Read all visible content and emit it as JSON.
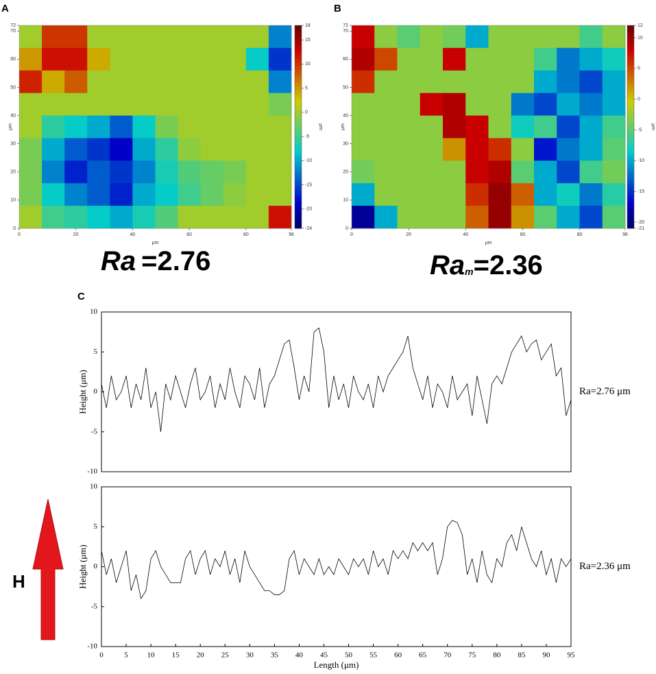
{
  "chart_data": [
    {
      "type": "heatmap",
      "panel_label": "A",
      "xlabel": "μm",
      "ylabel": "μm",
      "colorbar_label": "μm",
      "xlim": [
        0,
        96
      ],
      "ylim": [
        0,
        72
      ],
      "xticks": [
        0,
        20,
        40,
        60,
        80,
        96
      ],
      "yticks": [
        0,
        10,
        20,
        30,
        40,
        50,
        60,
        70,
        72
      ],
      "zlim": [
        -24,
        18
      ],
      "colorbar_ticks": [
        -24,
        -20,
        -15,
        -10,
        -5,
        0,
        5,
        10,
        15,
        18
      ],
      "colormap": "jet",
      "z": [
        [
          0,
          10,
          10,
          0,
          0,
          0,
          0,
          0,
          0,
          0,
          0,
          -12
        ],
        [
          5,
          12,
          12,
          4,
          0,
          0,
          0,
          0,
          0,
          0,
          -8,
          -16
        ],
        [
          11,
          4,
          8,
          0,
          0,
          0,
          0,
          0,
          0,
          0,
          0,
          -12
        ],
        [
          0,
          0,
          0,
          0,
          0,
          0,
          0,
          0,
          0,
          0,
          0,
          -2
        ],
        [
          0,
          -6,
          -8,
          -10,
          -14,
          -8,
          -2,
          0,
          0,
          0,
          0,
          0
        ],
        [
          -2,
          -10,
          -14,
          -16,
          -19,
          -10,
          -6,
          -1,
          0,
          0,
          0,
          0
        ],
        [
          -2,
          -12,
          -17,
          -14,
          -16,
          -12,
          -7,
          -4,
          -3,
          -2,
          0,
          0
        ],
        [
          -2,
          -8,
          -12,
          -14,
          -17,
          -10,
          -8,
          -5,
          -3,
          -1,
          0,
          0
        ],
        [
          0,
          -5,
          -6,
          -8,
          -10,
          -7,
          -4,
          0,
          0,
          0,
          0,
          12
        ]
      ],
      "annotation": {
        "main": "Ra",
        "rest": "=2.76"
      }
    },
    {
      "type": "heatmap",
      "panel_label": "B",
      "xlabel": "μm",
      "ylabel": "μm",
      "colorbar_label": "μm",
      "xlim": [
        0,
        96
      ],
      "ylim": [
        0,
        72
      ],
      "xticks": [
        0,
        20,
        40,
        60,
        80,
        96
      ],
      "yticks": [
        0,
        10,
        20,
        30,
        40,
        50,
        60,
        70,
        72
      ],
      "zlim": [
        -21,
        12
      ],
      "colorbar_ticks": [
        -21,
        -20,
        -15,
        -10,
        -5,
        0,
        5,
        10,
        12
      ],
      "colormap": "jet",
      "z": [
        [
          8,
          -3,
          -5,
          -3,
          -4,
          -10,
          -3,
          -3,
          -3,
          -3,
          -6,
          -3
        ],
        [
          9,
          5,
          -3,
          -3,
          8,
          -3,
          -3,
          -3,
          -6,
          -12,
          -10,
          -8
        ],
        [
          6,
          -3,
          -3,
          -3,
          -3,
          -3,
          -3,
          -3,
          -10,
          -12,
          -14,
          -10
        ],
        [
          -3,
          -3,
          -3,
          8,
          9,
          -3,
          -3,
          -12,
          -14,
          -10,
          -12,
          -10
        ],
        [
          -3,
          -3,
          -3,
          -3,
          9,
          8,
          -3,
          -8,
          -6,
          -14,
          -10,
          -6
        ],
        [
          -3,
          -3,
          -3,
          -3,
          2,
          8,
          6,
          -3,
          -16,
          -12,
          -10,
          -5
        ],
        [
          -4,
          -3,
          -3,
          -3,
          -3,
          8,
          9,
          -5,
          -10,
          -14,
          -6,
          -4
        ],
        [
          -10,
          -3,
          -3,
          -3,
          -3,
          6,
          10,
          4,
          -10,
          -8,
          -12,
          -7
        ],
        [
          -19,
          -10,
          -3,
          -3,
          -3,
          4,
          10,
          2,
          -5,
          -10,
          -14,
          -5
        ]
      ],
      "annotation": {
        "main": "Ra",
        "sub": "m",
        "rest": "=2.36"
      }
    },
    {
      "type": "line",
      "panel_label": "C",
      "ylabel": "Height (μm)",
      "annotation": "Ra=2.76 μm",
      "color": "#000000",
      "xlim": [
        0,
        95
      ],
      "ylim": [
        -10,
        10
      ],
      "yticks": [
        -10,
        -5,
        0,
        5,
        10
      ],
      "x": [
        0,
        1,
        2,
        3,
        4,
        5,
        6,
        7,
        8,
        9,
        10,
        11,
        12,
        13,
        14,
        15,
        16,
        17,
        18,
        19,
        20,
        21,
        22,
        23,
        24,
        25,
        26,
        27,
        28,
        29,
        30,
        31,
        32,
        33,
        34,
        35,
        36,
        37,
        38,
        39,
        40,
        41,
        42,
        43,
        44,
        45,
        46,
        47,
        48,
        49,
        50,
        51,
        52,
        53,
        54,
        55,
        56,
        57,
        58,
        59,
        60,
        61,
        62,
        63,
        64,
        65,
        66,
        67,
        68,
        69,
        70,
        71,
        72,
        73,
        74,
        75,
        76,
        77,
        78,
        79,
        80,
        81,
        82,
        83,
        84,
        85,
        86,
        87,
        88,
        89,
        90,
        91,
        92,
        93,
        94,
        95
      ],
      "values": [
        1,
        -2,
        2,
        -1,
        0,
        2,
        -2,
        1,
        -1,
        3,
        -2,
        0,
        -5,
        1,
        -1,
        2,
        0,
        -2,
        1,
        3,
        -1,
        0,
        2,
        -2,
        1,
        -1,
        3,
        0,
        -2,
        2,
        1,
        -1,
        3,
        -2,
        1,
        2,
        4,
        6,
        6.5,
        3,
        -1,
        2,
        0,
        7.5,
        8,
        5,
        -2,
        2,
        -1,
        1,
        -2,
        2,
        0,
        -1,
        1,
        -2,
        2,
        0,
        2,
        3,
        4,
        5,
        7,
        3,
        1,
        -1,
        2,
        -2,
        1,
        0,
        -2,
        2,
        -1,
        0,
        1,
        -3,
        2,
        -1,
        -4,
        1,
        2,
        1,
        3,
        5,
        6,
        7,
        5,
        6,
        6.5,
        4,
        5,
        6,
        2,
        3,
        -3,
        -1
      ]
    },
    {
      "type": "line",
      "ylabel": "Height (μm)",
      "xlabel": "Length (μm)",
      "annotation": "Ra=2.36 μm",
      "color": "#000000",
      "xlim": [
        0,
        95
      ],
      "ylim": [
        -10,
        10
      ],
      "yticks": [
        -10,
        -5,
        0,
        5,
        10
      ],
      "xticks": [
        0,
        5,
        10,
        15,
        20,
        25,
        30,
        35,
        40,
        45,
        50,
        55,
        60,
        65,
        70,
        75,
        80,
        85,
        90,
        95
      ],
      "x": [
        0,
        1,
        2,
        3,
        4,
        5,
        6,
        7,
        8,
        9,
        10,
        11,
        12,
        13,
        14,
        15,
        16,
        17,
        18,
        19,
        20,
        21,
        22,
        23,
        24,
        25,
        26,
        27,
        28,
        29,
        30,
        31,
        32,
        33,
        34,
        35,
        36,
        37,
        38,
        39,
        40,
        41,
        42,
        43,
        44,
        45,
        46,
        47,
        48,
        49,
        50,
        51,
        52,
        53,
        54,
        55,
        56,
        57,
        58,
        59,
        60,
        61,
        62,
        63,
        64,
        65,
        66,
        67,
        68,
        69,
        70,
        71,
        72,
        73,
        74,
        75,
        76,
        77,
        78,
        79,
        80,
        81,
        82,
        83,
        84,
        85,
        86,
        87,
        88,
        89,
        90,
        91,
        92,
        93,
        94,
        95
      ],
      "values": [
        2,
        -1,
        1,
        -2,
        0,
        2,
        -3,
        -1,
        -4,
        -3,
        1,
        2,
        0,
        -1,
        -2,
        -2,
        -2,
        1,
        2,
        -1,
        1,
        2,
        -1,
        1,
        0,
        2,
        -1,
        1,
        -2,
        2,
        0,
        -1,
        -2,
        -3,
        -3,
        -3.5,
        -3.5,
        -3,
        1,
        2,
        -1,
        1,
        0,
        -1,
        1,
        -1,
        0,
        -1,
        1,
        0,
        -1,
        1,
        0,
        1,
        -1,
        2,
        0,
        1,
        -1,
        2,
        1,
        2,
        1,
        3,
        2,
        3,
        2,
        3,
        -1,
        1,
        5,
        5.8,
        5.5,
        4,
        -1,
        1,
        -2,
        2,
        -1,
        -2,
        1,
        0,
        3,
        4,
        2,
        5,
        3,
        1,
        0,
        2,
        -1,
        1,
        -2,
        1,
        0,
        1
      ]
    }
  ],
  "side_label": "H"
}
